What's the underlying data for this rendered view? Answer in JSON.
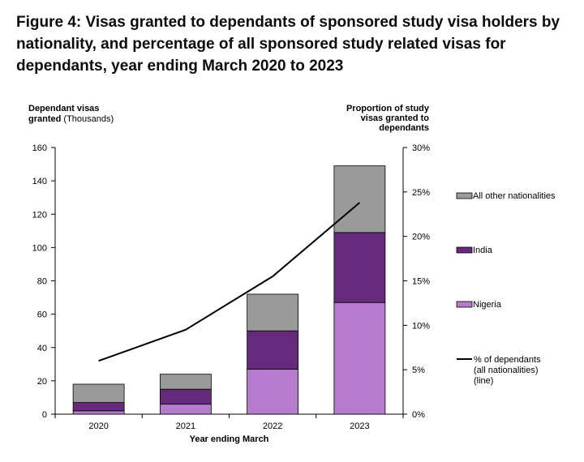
{
  "title": "Figure 4: Visas granted to dependants of sponsored study visa holders by nationality, and percentage of all sponsored study related visas for dependants, year ending March 2020 to 2023",
  "y_left_title": [
    "Dependant visas",
    "granted (Thousands)"
  ],
  "y_right_title": [
    "Proportion of study",
    "visas granted to",
    "dependants"
  ],
  "chart_data": {
    "type": "bar",
    "stacked": true,
    "categories": [
      "2020",
      "2021",
      "2022",
      "2023"
    ],
    "xlabel": "Year ending March",
    "ylabel": "Dependant visas granted (Thousands)",
    "ylim": [
      0,
      160
    ],
    "yticks": [
      0,
      20,
      40,
      60,
      80,
      100,
      120,
      140,
      160
    ],
    "y2label": "Proportion of study visas granted to dependants",
    "y2lim": [
      0,
      30
    ],
    "y2ticks": [
      "0%",
      "5%",
      "10%",
      "15%",
      "20%",
      "25%",
      "30%"
    ],
    "series": [
      {
        "name": "Nigeria",
        "color": "#b57ccd",
        "values": [
          2,
          6,
          27,
          67
        ]
      },
      {
        "name": "India",
        "color": "#662a7d",
        "values": [
          5,
          9,
          23,
          42
        ]
      },
      {
        "name": "All other nationalities",
        "color": "#9a9a9a",
        "values": [
          11,
          9,
          22,
          40
        ]
      }
    ],
    "line": {
      "name": "% of dependants (all nationalities) (line)",
      "name_lines": [
        "% of dependants",
        "(all nationalities)",
        "(line)"
      ],
      "axis": "right",
      "color": "#000000",
      "values": [
        6.0,
        9.5,
        15.5,
        23.8
      ]
    },
    "legend_position": "right",
    "grid": false
  }
}
